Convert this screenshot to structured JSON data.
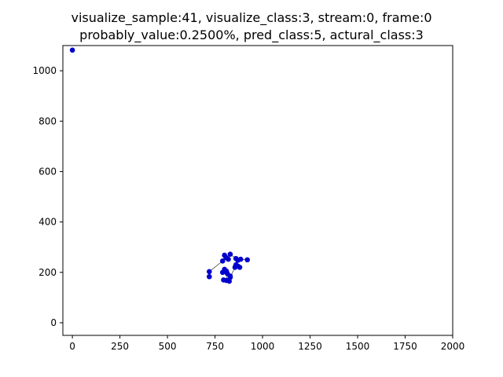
{
  "chart_data": {
    "type": "scatter",
    "title_lines": [
      "visualize_sample:41, visualize_class:3, stream:0, frame:0",
      "probably_value:0.2500%, pred_class:5, actural_class:3"
    ],
    "xlabel": "",
    "ylabel": "",
    "xlim": [
      -50,
      2000
    ],
    "ylim": [
      -50,
      1100
    ],
    "xticks": [
      0,
      250,
      500,
      750,
      1000,
      1250,
      1500,
      1750,
      2000
    ],
    "yticks": [
      0,
      200,
      400,
      600,
      800,
      1000
    ],
    "grid": false,
    "colors": {
      "point": "#0000cc",
      "edge": "#333333"
    },
    "series": [
      {
        "points": [
          [
            0,
            1082
          ],
          [
            800,
            268
          ],
          [
            810,
            258
          ],
          [
            820,
            252
          ],
          [
            790,
            245
          ],
          [
            830,
            272
          ],
          [
            860,
            255
          ],
          [
            870,
            248
          ],
          [
            885,
            252
          ],
          [
            920,
            250
          ],
          [
            860,
            230
          ],
          [
            870,
            225
          ],
          [
            880,
            220
          ],
          [
            855,
            220
          ],
          [
            720,
            203
          ],
          [
            720,
            183
          ],
          [
            800,
            212
          ],
          [
            810,
            205
          ],
          [
            790,
            200
          ],
          [
            815,
            195
          ],
          [
            830,
            185
          ],
          [
            830,
            180
          ],
          [
            810,
            168
          ],
          [
            825,
            165
          ],
          [
            795,
            170
          ]
        ],
        "edges": [
          [
            1,
            2
          ],
          [
            2,
            3
          ],
          [
            1,
            4
          ],
          [
            3,
            5
          ],
          [
            5,
            6
          ],
          [
            6,
            7
          ],
          [
            7,
            8
          ],
          [
            8,
            9
          ],
          [
            7,
            10
          ],
          [
            10,
            11
          ],
          [
            11,
            12
          ],
          [
            10,
            13
          ],
          [
            4,
            14
          ],
          [
            14,
            15
          ],
          [
            16,
            17
          ],
          [
            17,
            18
          ],
          [
            17,
            19
          ],
          [
            19,
            20
          ],
          [
            20,
            21
          ],
          [
            19,
            22
          ],
          [
            22,
            23
          ],
          [
            22,
            24
          ],
          [
            13,
            21
          ]
        ]
      }
    ]
  }
}
